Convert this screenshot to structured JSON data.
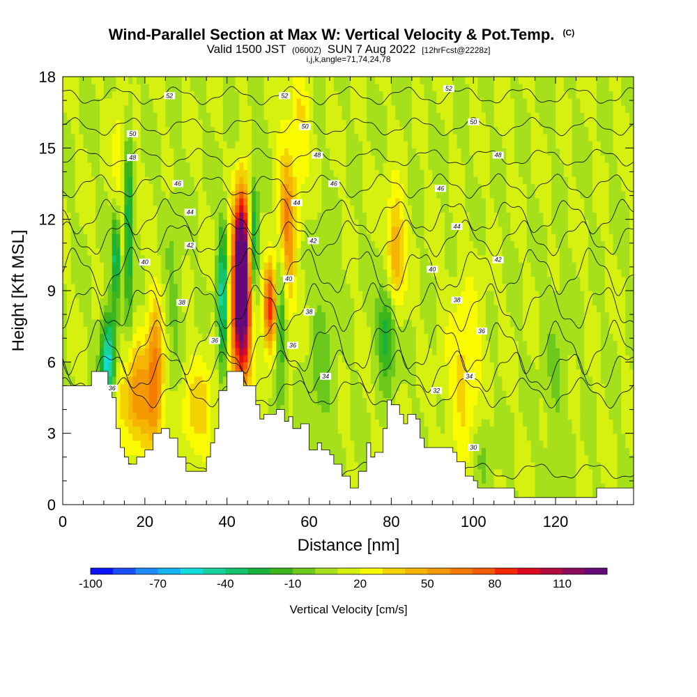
{
  "chart_data": {
    "type": "heatmap",
    "title": "Wind-Parallel Section at Max W: Vertical Velocity & Pot.Temp.",
    "title_suffix": "(C)",
    "subtitle_main": "Valid 1500 JST",
    "subtitle_zulu": "(0600Z)",
    "subtitle_date": "SUN 7 Aug 2022",
    "subtitle_fcst": "[12hrFcst@2228z]",
    "subtitle2": "i,j,k,angle=71,74,24,78",
    "xlabel": "Distance [nm]",
    "ylabel": "Height [Kft MSL]",
    "xlim": [
      0,
      139
    ],
    "ylim": [
      0,
      18
    ],
    "xticks": [
      0,
      20,
      40,
      60,
      80,
      100,
      120
    ],
    "yticks": [
      0,
      3,
      6,
      9,
      12,
      15,
      18
    ],
    "colorbar": {
      "label": "Vertical Velocity [cm/s]",
      "ticks": [
        -100,
        -70,
        -40,
        -10,
        20,
        50,
        80,
        110
      ],
      "min": -100,
      "max": 125,
      "step": 10,
      "colors": [
        "#0a14ff",
        "#1a50ff",
        "#1e8cff",
        "#14b4f0",
        "#10dcdc",
        "#18d2a0",
        "#14c46a",
        "#16b23c",
        "#3cb41c",
        "#6cc81a",
        "#a6e01a",
        "#d6f010",
        "#fafa00",
        "#f4d200",
        "#f4b400",
        "#f49a00",
        "#f47a00",
        "#f45a00",
        "#f42800",
        "#de0a1e",
        "#b40a3c",
        "#8c0a5a",
        "#640a78"
      ]
    },
    "terrain_kft": [
      [
        0,
        5
      ],
      [
        7,
        5
      ],
      [
        7,
        5.6
      ],
      [
        11,
        5.6
      ],
      [
        11,
        4.9
      ],
      [
        12,
        4.9
      ],
      [
        12,
        4.5
      ],
      [
        13,
        4.5
      ],
      [
        13,
        3.2
      ],
      [
        14,
        3.2
      ],
      [
        14,
        2.4
      ],
      [
        15,
        2.4
      ],
      [
        15,
        2
      ],
      [
        16,
        2
      ],
      [
        16,
        1.7
      ],
      [
        18,
        1.7
      ],
      [
        18,
        2
      ],
      [
        20,
        2
      ],
      [
        20,
        2.3
      ],
      [
        22,
        2.3
      ],
      [
        22,
        3
      ],
      [
        24,
        3
      ],
      [
        24,
        3.2
      ],
      [
        26,
        3.2
      ],
      [
        26,
        2.8
      ],
      [
        28,
        2.8
      ],
      [
        28,
        2
      ],
      [
        30,
        2
      ],
      [
        30,
        1.4
      ],
      [
        35,
        1.4
      ],
      [
        35,
        2
      ],
      [
        36,
        2
      ],
      [
        36,
        2.6
      ],
      [
        37,
        2.6
      ],
      [
        37,
        3.2
      ],
      [
        38,
        3.2
      ],
      [
        38,
        4.8
      ],
      [
        40,
        4.8
      ],
      [
        40,
        5.6
      ],
      [
        44,
        5.6
      ],
      [
        44,
        5
      ],
      [
        47,
        5
      ],
      [
        47,
        4.2
      ],
      [
        48,
        4.2
      ],
      [
        48,
        3.6
      ],
      [
        49,
        3.6
      ],
      [
        49,
        3.8
      ],
      [
        52,
        3.8
      ],
      [
        52,
        4
      ],
      [
        54,
        4
      ],
      [
        54,
        3.5
      ],
      [
        55,
        3.5
      ],
      [
        55,
        3.7
      ],
      [
        56,
        3.7
      ],
      [
        56,
        3.2
      ],
      [
        58,
        3.2
      ],
      [
        58,
        3.4
      ],
      [
        60,
        3.4
      ],
      [
        60,
        2.3
      ],
      [
        62,
        2.3
      ],
      [
        62,
        2.6
      ],
      [
        63,
        2.6
      ],
      [
        63,
        2.3
      ],
      [
        65,
        2.3
      ],
      [
        65,
        2.1
      ],
      [
        66,
        2.1
      ],
      [
        66,
        1.7
      ],
      [
        68,
        1.7
      ],
      [
        68,
        1.2
      ],
      [
        70,
        1.2
      ],
      [
        70,
        0.7
      ],
      [
        72,
        0.7
      ],
      [
        72,
        1.4
      ],
      [
        74,
        1.4
      ],
      [
        74,
        2.6
      ],
      [
        75,
        2.6
      ],
      [
        75,
        2
      ],
      [
        76,
        2
      ],
      [
        76,
        2.2
      ],
      [
        78,
        2.2
      ],
      [
        78,
        3.2
      ],
      [
        79,
        3.2
      ],
      [
        79,
        4.4
      ],
      [
        80,
        4.4
      ],
      [
        80,
        4.2
      ],
      [
        82,
        4.2
      ],
      [
        82,
        3.8
      ],
      [
        83,
        3.8
      ],
      [
        83,
        3.4
      ],
      [
        84,
        3.4
      ],
      [
        84,
        3.8
      ],
      [
        86,
        3.8
      ],
      [
        86,
        3.6
      ],
      [
        87,
        3.6
      ],
      [
        87,
        2.8
      ],
      [
        88,
        2.8
      ],
      [
        88,
        2.4
      ],
      [
        95,
        2.4
      ],
      [
        95,
        2.2
      ],
      [
        96,
        2.2
      ],
      [
        96,
        1.8
      ],
      [
        98,
        1.8
      ],
      [
        98,
        1.2
      ],
      [
        100,
        1.2
      ],
      [
        100,
        1
      ],
      [
        101,
        1
      ],
      [
        101,
        0.7
      ],
      [
        105,
        0.7
      ],
      [
        105,
        0.7
      ],
      [
        110,
        0.7
      ],
      [
        110,
        0.3
      ],
      [
        130,
        0.3
      ],
      [
        130,
        0.7
      ],
      [
        139,
        0.7
      ]
    ],
    "features": [
      {
        "x": 43.5,
        "z": 8.5,
        "sx": 1.7,
        "sz": 2.5,
        "w": 135
      },
      {
        "x": 43.5,
        "z": 11.2,
        "sx": 1.1,
        "sz": 1.6,
        "w": 70
      },
      {
        "x": 50.5,
        "z": 8.2,
        "sx": 1.2,
        "sz": 1.3,
        "w": 75
      },
      {
        "x": 54.5,
        "z": 11.5,
        "sx": 1.6,
        "sz": 2.5,
        "w": 55
      },
      {
        "x": 18,
        "z": 4.5,
        "sx": 3,
        "sz": 1.6,
        "w": 45
      },
      {
        "x": 22.5,
        "z": 5.5,
        "sx": 1.4,
        "sz": 2.2,
        "w": 50
      },
      {
        "x": 33,
        "z": 4,
        "sx": 3,
        "sz": 1.6,
        "w": 25
      },
      {
        "x": 81,
        "z": 10.5,
        "sx": 1.6,
        "sz": 1.8,
        "w": 45
      },
      {
        "x": 98,
        "z": 5.5,
        "sx": 3,
        "sz": 2.5,
        "w": 25
      },
      {
        "x": 14,
        "z": 13,
        "sx": 1.5,
        "sz": 3,
        "w": 20
      },
      {
        "x": 58,
        "z": 16,
        "sx": 1.5,
        "sz": 2,
        "w": 20
      },
      {
        "x": 11,
        "z": 6,
        "sx": 1.2,
        "sz": 1.4,
        "w": -70
      },
      {
        "x": 13,
        "z": 10.5,
        "sx": 0.8,
        "sz": 1.5,
        "w": -60
      },
      {
        "x": 16,
        "z": 11.5,
        "sx": 0.8,
        "sz": 3,
        "w": -50
      },
      {
        "x": 39,
        "z": 8.5,
        "sx": 0.9,
        "sz": 2.2,
        "w": -60
      },
      {
        "x": 46.5,
        "z": 11,
        "sx": 0.8,
        "sz": 2,
        "w": -50
      },
      {
        "x": 53,
        "z": 8,
        "sx": 1,
        "sz": 2.5,
        "w": -45
      },
      {
        "x": 79,
        "z": 7.5,
        "sx": 1.6,
        "sz": 1.6,
        "w": -40
      },
      {
        "x": 27,
        "z": 9,
        "sx": 1.5,
        "sz": 3,
        "w": -12
      },
      {
        "x": 63,
        "z": 6,
        "sx": 2,
        "sz": 3,
        "w": -15
      },
      {
        "x": 102,
        "z": 2.5,
        "sx": 2,
        "sz": 1.5,
        "w": -12
      },
      {
        "x": 120,
        "z": 5,
        "sx": 2,
        "sz": 3,
        "w": -10
      }
    ],
    "theta_contours": [
      {
        "level": 30,
        "z0": 1.4,
        "pert": 0.3
      },
      {
        "level": 32,
        "z0": 4.7,
        "pert": 0.5
      },
      {
        "level": 34,
        "z0": 5.6,
        "pert": 0.7
      },
      {
        "level": 36,
        "z0": 6.6,
        "pert": 0.9
      },
      {
        "level": 38,
        "z0": 8.3,
        "pert": 0.8
      },
      {
        "level": 40,
        "z0": 9.8,
        "pert": 0.8
      },
      {
        "level": 42,
        "z0": 11.2,
        "pert": 0.6
      },
      {
        "level": 44,
        "z0": 12.1,
        "pert": 0.6
      },
      {
        "level": 46,
        "z0": 13.4,
        "pert": 0.4
      },
      {
        "level": 48,
        "z0": 14.6,
        "pert": 0.3
      },
      {
        "level": 50,
        "z0": 15.9,
        "pert": 0.3
      },
      {
        "level": 52,
        "z0": 17.2,
        "pert": 0.3
      }
    ],
    "contour_labels": [
      {
        "text": "52",
        "x": 26,
        "z": 17.2
      },
      {
        "text": "52",
        "x": 54,
        "z": 17.2
      },
      {
        "text": "52",
        "x": 94,
        "z": 17.5
      },
      {
        "text": "50",
        "x": 17,
        "z": 15.6
      },
      {
        "text": "50",
        "x": 59,
        "z": 15.9
      },
      {
        "text": "50",
        "x": 100,
        "z": 16.1
      },
      {
        "text": "48",
        "x": 17,
        "z": 14.6
      },
      {
        "text": "48",
        "x": 62,
        "z": 14.7
      },
      {
        "text": "48",
        "x": 106,
        "z": 14.7
      },
      {
        "text": "46",
        "x": 28,
        "z": 13.5
      },
      {
        "text": "46",
        "x": 66,
        "z": 13.5
      },
      {
        "text": "46",
        "x": 92,
        "z": 13.3
      },
      {
        "text": "44",
        "x": 31,
        "z": 12.3
      },
      {
        "text": "44",
        "x": 57,
        "z": 12.7
      },
      {
        "text": "44",
        "x": 96,
        "z": 11.7
      },
      {
        "text": "42",
        "x": 31,
        "z": 10.9
      },
      {
        "text": "42",
        "x": 61,
        "z": 11.1
      },
      {
        "text": "42",
        "x": 106,
        "z": 10.3
      },
      {
        "text": "40",
        "x": 20,
        "z": 10.2
      },
      {
        "text": "40",
        "x": 55,
        "z": 9.5
      },
      {
        "text": "40",
        "x": 90,
        "z": 9.9
      },
      {
        "text": "38",
        "x": 29,
        "z": 8.5
      },
      {
        "text": "38",
        "x": 60,
        "z": 8.1
      },
      {
        "text": "38",
        "x": 96,
        "z": 8.6
      },
      {
        "text": "36",
        "x": 37,
        "z": 6.9
      },
      {
        "text": "36",
        "x": 56,
        "z": 6.7
      },
      {
        "text": "36",
        "x": 102,
        "z": 7.3
      },
      {
        "text": "36",
        "x": 12,
        "z": 4.9
      },
      {
        "text": "34",
        "x": 64,
        "z": 5.4
      },
      {
        "text": "34",
        "x": 99,
        "z": 5.4
      },
      {
        "text": "32",
        "x": 91,
        "z": 4.8
      },
      {
        "text": "30",
        "x": 100,
        "z": 2.4
      }
    ]
  }
}
